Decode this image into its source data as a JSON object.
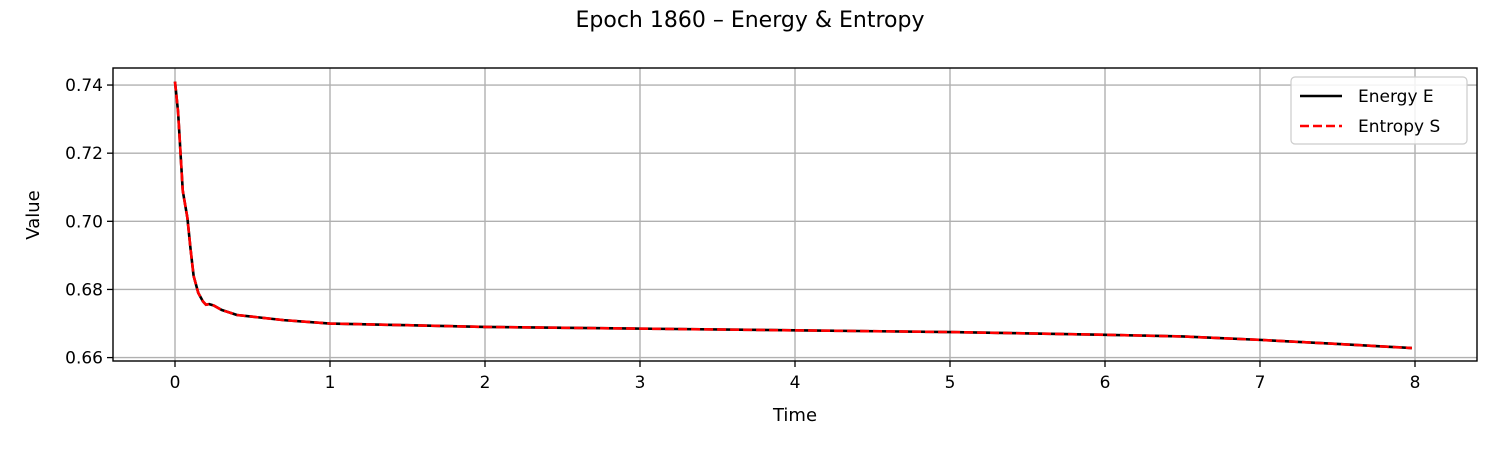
{
  "chart_data": {
    "type": "line",
    "title": "Epoch 1860 – Energy & Entropy",
    "xlabel": "Time",
    "ylabel": "Value",
    "xlim": [
      -0.4,
      8.4
    ],
    "ylim": [
      0.659,
      0.745
    ],
    "x_ticks": [
      0,
      1,
      2,
      3,
      4,
      5,
      6,
      7,
      8
    ],
    "y_ticks": [
      0.66,
      0.68,
      0.7,
      0.72,
      0.74
    ],
    "x_tick_labels": [
      "0",
      "1",
      "2",
      "3",
      "4",
      "5",
      "6",
      "7",
      "8"
    ],
    "y_tick_labels": [
      "0.66",
      "0.68",
      "0.70",
      "0.72",
      "0.74"
    ],
    "grid": true,
    "legend_position": "top-right",
    "x": [
      0.0,
      0.02,
      0.05,
      0.08,
      0.1,
      0.12,
      0.15,
      0.18,
      0.2,
      0.22,
      0.25,
      0.3,
      0.4,
      0.5,
      0.7,
      1.0,
      1.5,
      2.0,
      3.0,
      4.0,
      5.0,
      6.0,
      6.5,
      7.0,
      7.5,
      7.98
    ],
    "series": [
      {
        "name": "Energy E",
        "color": "#000000",
        "style": "solid",
        "values": [
          0.741,
          0.732,
          0.709,
          0.701,
          0.692,
          0.684,
          0.679,
          0.6765,
          0.6755,
          0.6757,
          0.6753,
          0.674,
          0.6725,
          0.672,
          0.671,
          0.67,
          0.6695,
          0.669,
          0.6685,
          0.668,
          0.6675,
          0.6667,
          0.6662,
          0.6652,
          0.664,
          0.6628
        ]
      },
      {
        "name": "Entropy S",
        "color": "#ff0000",
        "style": "dashed",
        "values": [
          0.741,
          0.732,
          0.709,
          0.701,
          0.692,
          0.684,
          0.679,
          0.6765,
          0.6755,
          0.6757,
          0.6753,
          0.674,
          0.6725,
          0.672,
          0.671,
          0.67,
          0.6695,
          0.669,
          0.6685,
          0.668,
          0.6675,
          0.6667,
          0.6662,
          0.6652,
          0.664,
          0.6628
        ]
      }
    ]
  }
}
